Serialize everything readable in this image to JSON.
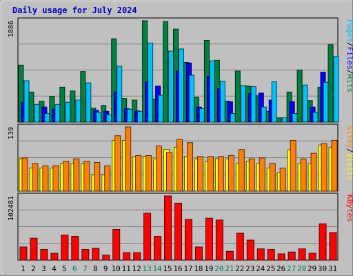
{
  "chart_data": {
    "type": "bar",
    "title": "Daily usage for July 2024",
    "days": [
      "1",
      "2",
      "3",
      "4",
      "5",
      "6",
      "7",
      "8",
      "9",
      "10",
      "11",
      "12",
      "13",
      "14",
      "15",
      "16",
      "17",
      "18",
      "19",
      "20",
      "21",
      "22",
      "23",
      "24",
      "25",
      "26",
      "27",
      "28",
      "29",
      "30",
      "31"
    ],
    "weekend_days": [
      "6",
      "7",
      "13",
      "14",
      "20",
      "21",
      "27",
      "28"
    ],
    "panels": [
      {
        "id": "hits",
        "ymax_label": "1886",
        "ymax": 1886,
        "series": [
          {
            "name": "Hits",
            "color": "#008040",
            "values": [
              1060,
              560,
              390,
              480,
              650,
              580,
              940,
              260,
              310,
              1550,
              440,
              410,
              1886,
              430,
              1870,
              1730,
              1110,
              460,
              1520,
              1150,
              390,
              950,
              670,
              490,
              200,
              80,
              560,
              970,
              400,
              650,
              1440
            ]
          },
          {
            "name": "Files",
            "color": "#0000FF",
            "values": [
              360,
              0,
              280,
              240,
              0,
              0,
              0,
              220,
              200,
              560,
              250,
              210,
              750,
              670,
              0,
              950,
              1100,
              280,
              850,
              620,
              380,
              0,
              530,
              540,
              410,
              0,
              380,
              0,
              280,
              930,
              0
            ]
          },
          {
            "name": "Pages",
            "color": "#00C0FF",
            "values": [
              770,
              330,
              160,
              330,
              370,
              410,
              730,
              180,
              140,
              1040,
              240,
              200,
              1470,
              500,
              1320,
              1360,
              870,
              250,
              1140,
              760,
              160,
              680,
              660,
              280,
              750,
              80,
              160,
              690,
              180,
              740,
              1220
            ]
          }
        ],
        "label_parts": [
          {
            "text": "Pages",
            "color": "#00C0FF"
          },
          {
            "text": "/",
            "color": "#000000"
          },
          {
            "text": "Files",
            "color": "#0000FF"
          },
          {
            "text": "/",
            "color": "#000000"
          },
          {
            "text": "Hits",
            "color": "#008040"
          }
        ]
      },
      {
        "id": "visits",
        "ymax_label": "139",
        "ymax": 139,
        "series": [
          {
            "name": "Visits",
            "color": "#FFFF00",
            "values": [
              70,
              50,
              50,
              50,
              60,
              60,
              60,
              35,
              35,
              110,
              110,
              75,
              75,
              70,
              90,
              95,
              75,
              70,
              65,
              70,
              70,
              60,
              65,
              60,
              50,
              40,
              90,
              60,
              60,
              100,
              95
            ]
          },
          {
            "name": "Sites",
            "color": "#FF8000",
            "values": [
              72,
              60,
              55,
              55,
              65,
              70,
              65,
              62,
              55,
              120,
              139,
              77,
              77,
              98,
              84,
              112,
              105,
              75,
              75,
              75,
              77,
              90,
              70,
              72,
              60,
              50,
              110,
              70,
              82,
              103,
              110
            ]
          }
        ],
        "label_parts": [
          {
            "text": "Sites",
            "color": "#FF8000"
          },
          {
            "text": "/",
            "color": "#000000"
          },
          {
            "text": "Visits",
            "color": "#FFFF00"
          }
        ]
      },
      {
        "id": "kbytes",
        "ymax_label": "102481",
        "ymax": 102481,
        "series": [
          {
            "name": "KBytes",
            "color": "#FF0000",
            "values": [
              21000,
              35000,
              17000,
              11000,
              40000,
              38000,
              17000,
              19000,
              8000,
              49000,
              12000,
              12000,
              75000,
              38000,
              102481,
              91000,
              65000,
              21000,
              67000,
              64000,
              14000,
              43000,
              32000,
              18000,
              17000,
              10000,
              13000,
              18000,
              11000,
              58000,
              44000
            ]
          }
        ],
        "label_parts": [
          {
            "text": "KBytes",
            "color": "#FF0000"
          }
        ]
      }
    ]
  }
}
